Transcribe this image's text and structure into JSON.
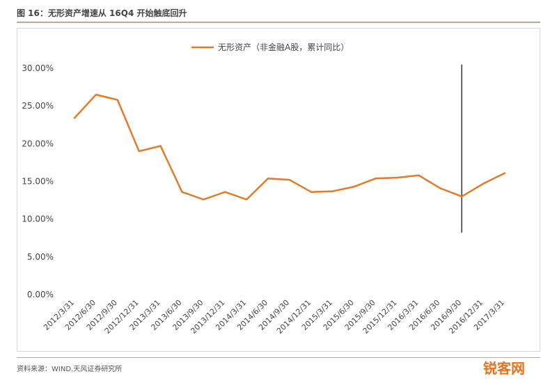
{
  "header": {
    "title": "图 16：无形资产增速从 16Q4 开始触底回升"
  },
  "source": "资料来源：WIND,天风证券研究所",
  "watermark": "锐客网",
  "colors": {
    "series": "#e07b29",
    "axis_text": "#444444",
    "vline": "#333333"
  },
  "chart_data": {
    "type": "line",
    "title": "",
    "xlabel": "",
    "ylabel": "",
    "legend_position": "top-center",
    "grid": false,
    "ylim": [
      0,
      30
    ],
    "yticks": [
      "0.00%",
      "5.00%",
      "10.00%",
      "15.00%",
      "20.00%",
      "25.00%",
      "30.00%"
    ],
    "categories": [
      "2012/3/31",
      "2012/6/30",
      "2012/9/30",
      "2012/12/31",
      "2013/3/31",
      "2013/6/30",
      "2013/9/30",
      "2013/12/31",
      "2014/3/31",
      "2014/6/30",
      "2014/9/30",
      "2014/12/31",
      "2015/3/31",
      "2015/6/30",
      "2015/9/30",
      "2015/12/31",
      "2016/3/31",
      "2016/6/30",
      "2016/9/30",
      "2016/12/31",
      "2017/3/31"
    ],
    "series": [
      {
        "name": "无形资产（非金融A股，累计同比）",
        "values": [
          23.4,
          26.5,
          25.8,
          19.0,
          19.7,
          13.6,
          12.6,
          13.6,
          12.6,
          15.4,
          15.2,
          13.6,
          13.7,
          14.3,
          15.4,
          15.5,
          15.8,
          14.1,
          13.0,
          14.7,
          16.1
        ]
      }
    ],
    "annotations": [
      {
        "type": "vertical-line",
        "x": "2016/9/30",
        "ymin": 8.2,
        "ymax": 30.5
      }
    ]
  }
}
